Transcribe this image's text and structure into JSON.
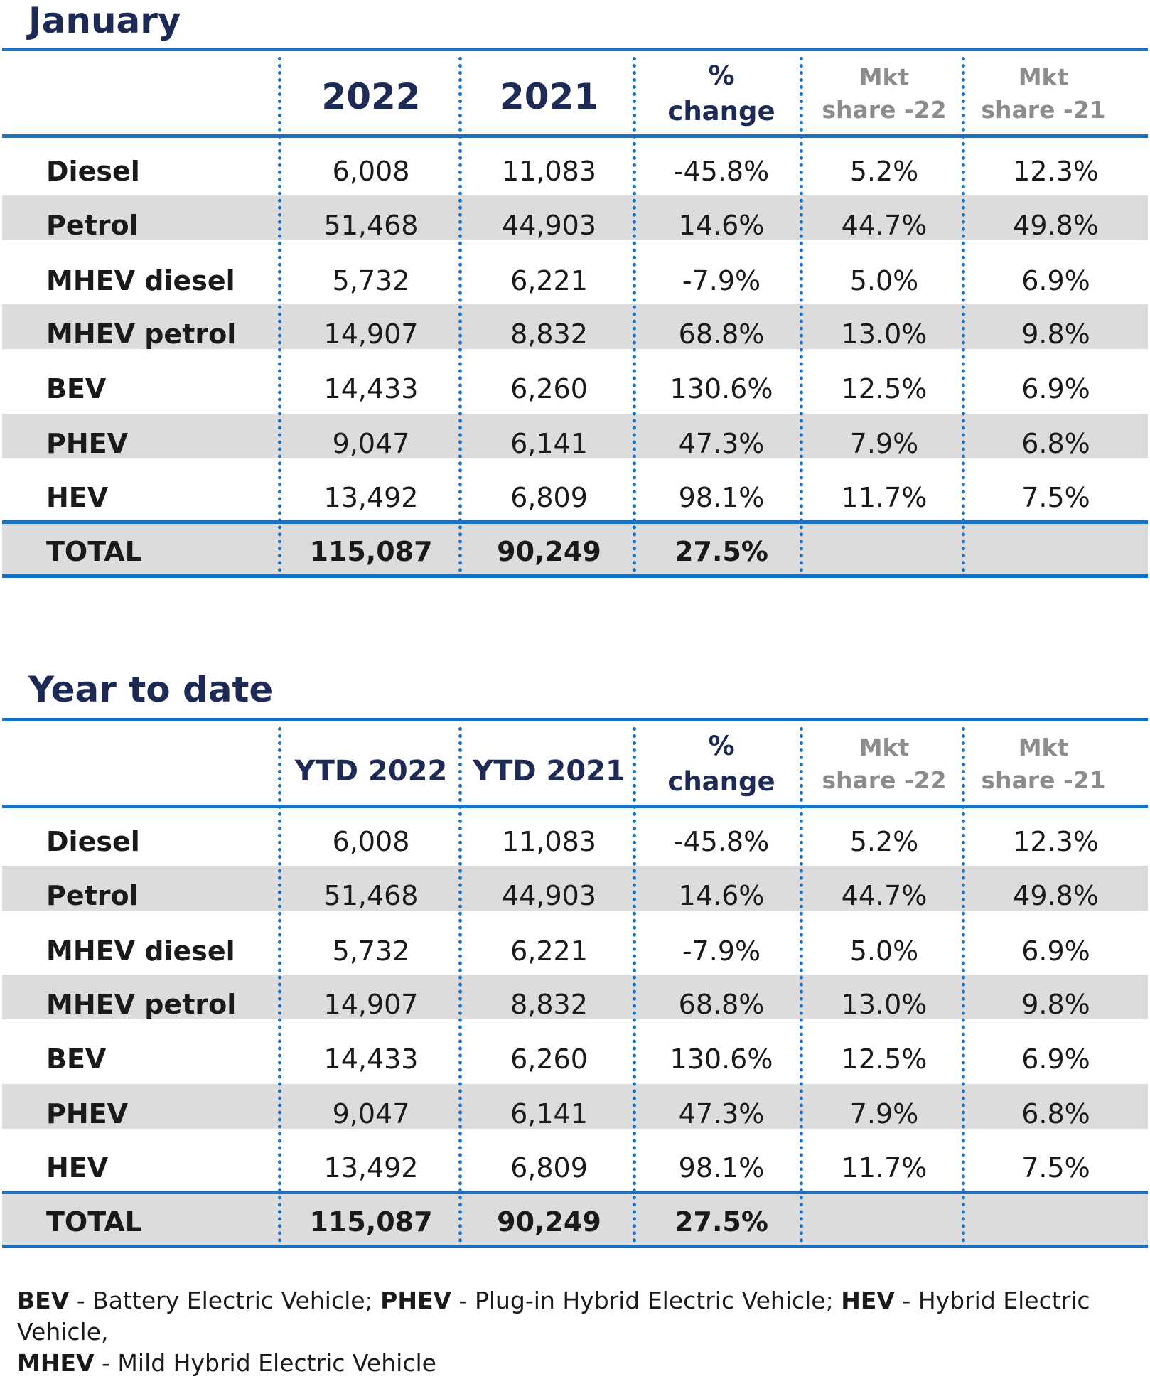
{
  "sections": [
    {
      "title": "January",
      "headers": {
        "col_a": "2022",
        "col_b": "2021",
        "change_line1": "%",
        "change_line2": "change",
        "mkt22_line1": "Mkt",
        "mkt22_line2": "share -22",
        "mkt21_line1": "Mkt",
        "mkt21_line2": "share -21"
      },
      "rows": [
        {
          "label": "Diesel",
          "a": "6,008",
          "b": "11,083",
          "change": "-45.8%",
          "mkt22": "5.2%",
          "mkt21": "12.3%"
        },
        {
          "label": "Petrol",
          "a": "51,468",
          "b": "44,903",
          "change": "14.6%",
          "mkt22": "44.7%",
          "mkt21": "49.8%"
        },
        {
          "label": "MHEV diesel",
          "a": "5,732",
          "b": "6,221",
          "change": "-7.9%",
          "mkt22": "5.0%",
          "mkt21": "6.9%"
        },
        {
          "label": "MHEV petrol",
          "a": "14,907",
          "b": "8,832",
          "change": "68.8%",
          "mkt22": "13.0%",
          "mkt21": "9.8%"
        },
        {
          "label": "BEV",
          "a": "14,433",
          "b": "6,260",
          "change": "130.6%",
          "mkt22": "12.5%",
          "mkt21": "6.9%"
        },
        {
          "label": "PHEV",
          "a": "9,047",
          "b": "6,141",
          "change": "47.3%",
          "mkt22": "7.9%",
          "mkt21": "6.8%"
        },
        {
          "label": "HEV",
          "a": "13,492",
          "b": "6,809",
          "change": "98.1%",
          "mkt22": "11.7%",
          "mkt21": "7.5%"
        }
      ],
      "total": {
        "label": "TOTAL",
        "a": "115,087",
        "b": "90,249",
        "change": "27.5%"
      }
    },
    {
      "title": "Year to date",
      "headers": {
        "col_a": "YTD 2022",
        "col_b": "YTD 2021",
        "change_line1": "%",
        "change_line2": "change",
        "mkt22_line1": "Mkt",
        "mkt22_line2": "share -22",
        "mkt21_line1": "Mkt",
        "mkt21_line2": "share -21"
      },
      "rows": [
        {
          "label": "Diesel",
          "a": "6,008",
          "b": "11,083",
          "change": "-45.8%",
          "mkt22": "5.2%",
          "mkt21": "12.3%"
        },
        {
          "label": "Petrol",
          "a": "51,468",
          "b": "44,903",
          "change": "14.6%",
          "mkt22": "44.7%",
          "mkt21": "49.8%"
        },
        {
          "label": "MHEV diesel",
          "a": "5,732",
          "b": "6,221",
          "change": "-7.9%",
          "mkt22": "5.0%",
          "mkt21": "6.9%"
        },
        {
          "label": "MHEV petrol",
          "a": "14,907",
          "b": "8,832",
          "change": "68.8%",
          "mkt22": "13.0%",
          "mkt21": "9.8%"
        },
        {
          "label": "BEV",
          "a": "14,433",
          "b": "6,260",
          "change": "130.6%",
          "mkt22": "12.5%",
          "mkt21": "6.9%"
        },
        {
          "label": "PHEV",
          "a": "9,047",
          "b": "6,141",
          "change": "47.3%",
          "mkt22": "7.9%",
          "mkt21": "6.8%"
        },
        {
          "label": "HEV",
          "a": "13,492",
          "b": "6,809",
          "change": "98.1%",
          "mkt22": "11.7%",
          "mkt21": "7.5%"
        }
      ],
      "total": {
        "label": "TOTAL",
        "a": "115,087",
        "b": "90,249",
        "change": "27.5%"
      }
    }
  ],
  "footnote": {
    "bev_abbr": "BEV",
    "bev_text": " - Battery Electric Vehicle; ",
    "phev_abbr": "PHEV",
    "phev_text": " - Plug-in Hybrid Electric Vehicle; ",
    "hev_abbr": "HEV",
    "hev_text": " - Hybrid Electric Vehicle,",
    "mhev_abbr": "MHEV",
    "mhev_text": " - Mild Hybrid Electric Vehicle"
  },
  "colors": {
    "rule": "#1a72c8",
    "title": "#1c2a55",
    "stripe": "#dcdcdc",
    "mkt_header": "#8c8c8c"
  }
}
